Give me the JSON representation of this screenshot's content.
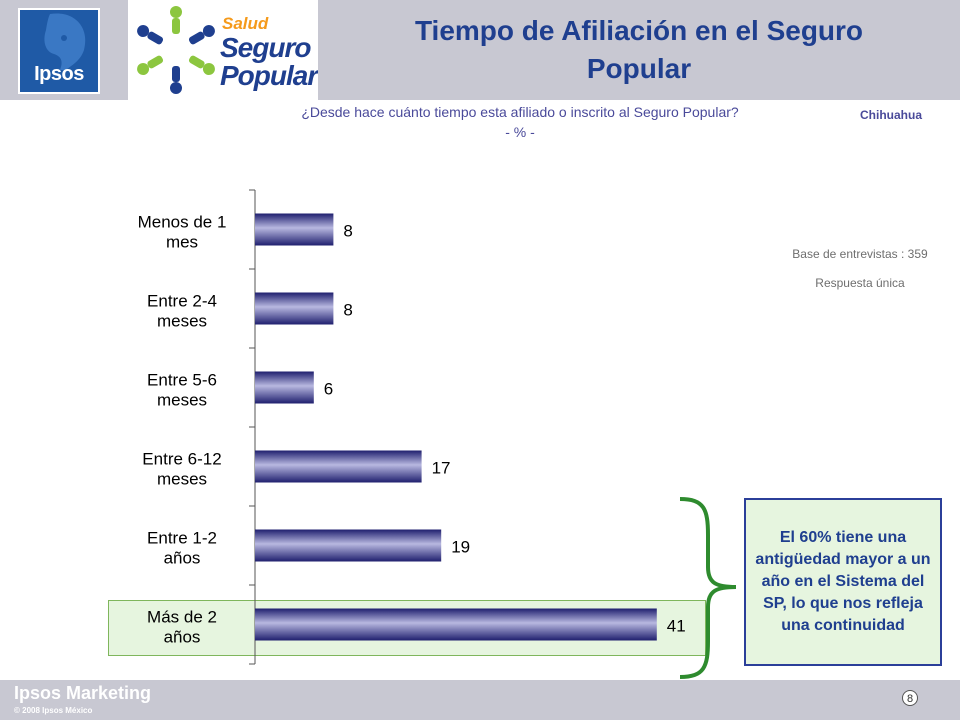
{
  "header": {
    "title_line1": "Tiempo de Afiliación en el Seguro",
    "title_line2": "Popular",
    "question": "¿Desde hace cuánto tiempo esta afiliado o inscrito al Seguro Popular?",
    "unit": "- % -",
    "region": "Chihuahua",
    "ipsos_logo_text": "Ipsos",
    "sp_logo": {
      "salud": "Salud",
      "seguro": "Seguro",
      "popular": "Popular"
    }
  },
  "notes": {
    "base": "Base de entrevistas : 359",
    "type": "Respuesta única"
  },
  "callout": "El 60% tiene una antigüedad mayor a un año en el Sistema del SP, lo que nos refleja una continuidad",
  "footer": {
    "brand": "Ipsos Marketing",
    "copyright": "© 2008 Ipsos México",
    "page": "8"
  },
  "colors": {
    "bar_dark": "#1f1f6e",
    "bar_light": "#b8b8e0",
    "highlight": "#e6f5df",
    "brace": "#2e8b2e"
  },
  "chart_data": {
    "type": "bar",
    "orientation": "horizontal",
    "categories": [
      [
        "Menos de 1",
        "mes"
      ],
      [
        "Entre 2-4",
        "meses"
      ],
      [
        "Entre 5-6",
        "meses"
      ],
      [
        "Entre 6-12",
        "meses"
      ],
      [
        "Entre 1-2",
        "años"
      ],
      [
        "Más de 2",
        "años"
      ]
    ],
    "values": [
      8,
      8,
      6,
      17,
      19,
      41
    ],
    "xlim": [
      0,
      45
    ],
    "grid": false,
    "highlight_category_index": 5
  }
}
